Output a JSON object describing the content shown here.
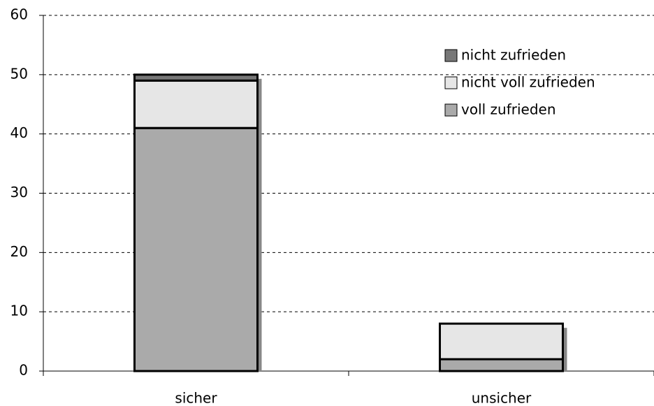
{
  "chart_data": {
    "type": "bar",
    "stacked": true,
    "categories": [
      "sicher",
      "unsicher"
    ],
    "series": [
      {
        "name": "voll zufrieden",
        "color": "#aaaaaa",
        "values": [
          41,
          2
        ]
      },
      {
        "name": "nicht voll zufrieden",
        "color": "#e6e6e6",
        "values": [
          8,
          6
        ]
      },
      {
        "name": "nicht zufrieden",
        "color": "#777777",
        "values": [
          1,
          0
        ]
      }
    ],
    "ylim": [
      0,
      60
    ],
    "yticks": [
      0,
      10,
      20,
      30,
      40,
      50,
      60
    ],
    "grid": true,
    "legend": "upper right"
  }
}
